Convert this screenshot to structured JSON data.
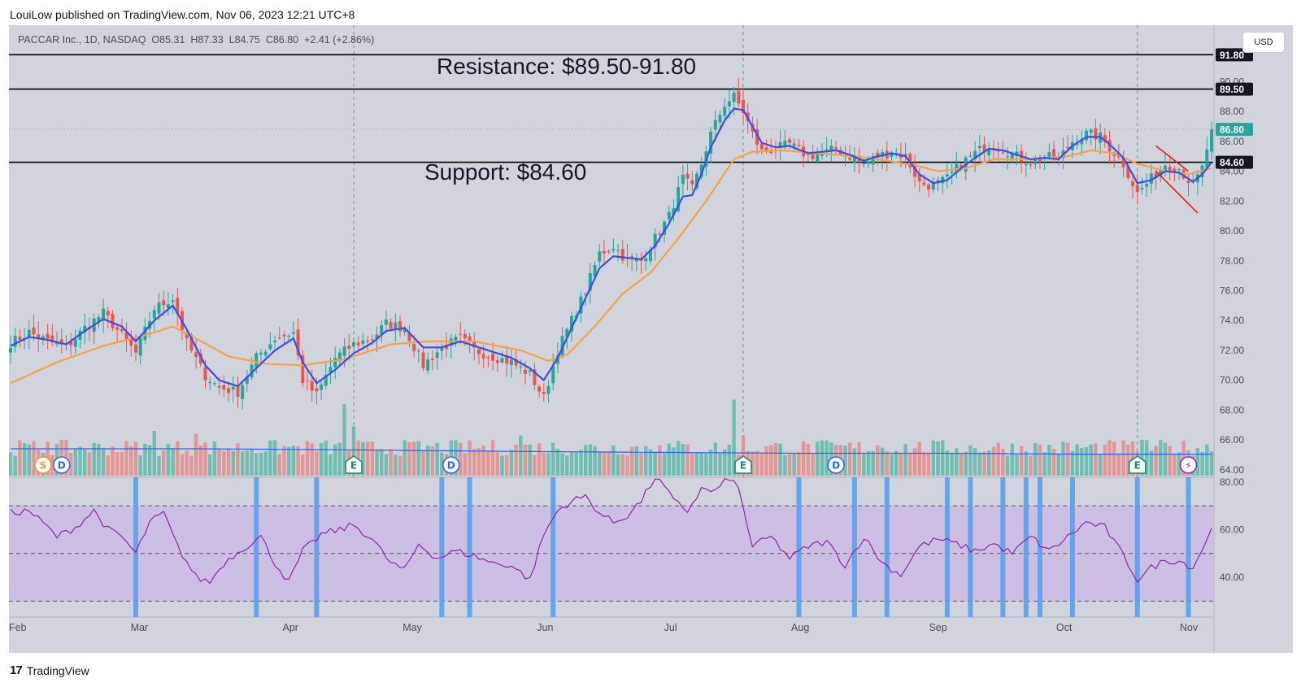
{
  "header": {
    "published_by": "LouiLow published on TradingView.com, Nov 06, 2023 12:21 UTC+8"
  },
  "legend": {
    "symbol": "PACCAR Inc., 1D, NASDAQ",
    "open": "O85.31",
    "high": "H87.33",
    "low": "L84.75",
    "close": "C86.80",
    "change": "+2.41 (+2.86%)"
  },
  "currency_button": "USD",
  "annotations": {
    "resistance": "Resistance: $89.50-91.80",
    "support": "Support: $84.60"
  },
  "footer": {
    "brand": "TradingView",
    "logo_glyph": "17"
  },
  "colors": {
    "background": "#d1d4dc",
    "up": "#26a69a",
    "down": "#ef5350",
    "ema_fast": "#3d4fe0",
    "ema_slow": "#f5a14a",
    "rsi": "#8e24aa",
    "rsi_band": "#c9b8e6",
    "signal_bar": "#5c9ef0",
    "vol_ma": "#2962ff"
  },
  "chart_data": {
    "type": "candlestick",
    "price_axis": {
      "ticks": [
        "64.00",
        "66.00",
        "68.00",
        "70.00",
        "72.00",
        "74.00",
        "76.00",
        "78.00",
        "80.00",
        "82.00",
        "84.00",
        "86.00",
        "88.00",
        "90.00"
      ],
      "ylim": [
        63.5,
        92.8
      ]
    },
    "price_labels": [
      {
        "value": 91.8,
        "text": "91.80",
        "style": "dark"
      },
      {
        "value": 89.5,
        "text": "89.50",
        "style": "dark"
      },
      {
        "value": 86.8,
        "text": "86.80",
        "style": "green"
      },
      {
        "value": 84.6,
        "text": "84.60",
        "style": "dark"
      }
    ],
    "horizontal_lines": [
      91.8,
      89.5,
      84.6
    ],
    "last_price": 86.8,
    "x_axis_labels": [
      "Feb",
      "Mar",
      "Apr",
      "May",
      "Jun",
      "Jul",
      "Aug",
      "Sep",
      "Oct",
      "Nov"
    ],
    "close_anchors": [
      [
        0,
        72.5
      ],
      [
        4,
        73.2
      ],
      [
        8,
        72.6
      ],
      [
        12,
        72.2
      ],
      [
        16,
        73.5
      ],
      [
        20,
        74.5
      ],
      [
        24,
        73.0
      ],
      [
        27,
        71.8
      ],
      [
        31,
        74.8
      ],
      [
        35,
        75.5
      ],
      [
        38,
        72.5
      ],
      [
        42,
        70.3
      ],
      [
        45,
        69.5
      ],
      [
        49,
        69.2
      ],
      [
        53,
        71.5
      ],
      [
        57,
        72.8
      ],
      [
        61,
        73.2
      ],
      [
        63,
        70.0
      ],
      [
        66,
        69.0
      ],
      [
        70,
        71.5
      ],
      [
        74,
        72.4
      ],
      [
        78,
        72.8
      ],
      [
        81,
        73.8
      ],
      [
        85,
        73.5
      ],
      [
        89,
        71.0
      ],
      [
        93,
        72.2
      ],
      [
        97,
        72.8
      ],
      [
        100,
        72.0
      ],
      [
        104,
        71.6
      ],
      [
        108,
        71.2
      ],
      [
        112,
        70.4
      ],
      [
        115,
        68.8
      ],
      [
        118,
        72.0
      ],
      [
        121,
        74.0
      ],
      [
        124,
        76.0
      ],
      [
        127,
        78.5
      ],
      [
        130,
        79.0
      ],
      [
        133,
        78.0
      ],
      [
        136,
        78.0
      ],
      [
        139,
        79.5
      ],
      [
        142,
        81.0
      ],
      [
        145,
        83.5
      ],
      [
        147,
        82.8
      ],
      [
        149,
        84.5
      ],
      [
        151,
        86.5
      ],
      [
        154,
        88.5
      ],
      [
        156,
        89.0
      ],
      [
        158,
        88.0
      ],
      [
        160,
        86.5
      ],
      [
        162,
        85.3
      ],
      [
        165,
        85.5
      ],
      [
        168,
        85.8
      ],
      [
        172,
        85.0
      ],
      [
        175,
        85.2
      ],
      [
        178,
        85.5
      ],
      [
        181,
        85.0
      ],
      [
        184,
        84.5
      ],
      [
        187,
        85.0
      ],
      [
        190,
        85.3
      ],
      [
        193,
        85.0
      ],
      [
        196,
        83.2
      ],
      [
        199,
        83.0
      ],
      [
        202,
        83.5
      ],
      [
        205,
        84.5
      ],
      [
        208,
        85.2
      ],
      [
        211,
        85.8
      ],
      [
        214,
        85.5
      ],
      [
        217,
        85.0
      ],
      [
        220,
        84.6
      ],
      [
        223,
        85.0
      ],
      [
        226,
        84.8
      ],
      [
        229,
        86.0
      ],
      [
        232,
        86.5
      ],
      [
        235,
        86.3
      ],
      [
        237,
        85.6
      ],
      [
        240,
        84.5
      ],
      [
        243,
        82.5
      ],
      [
        246,
        83.5
      ],
      [
        249,
        84.5
      ],
      [
        252,
        84.2
      ],
      [
        255,
        83.0
      ],
      [
        257,
        84.2
      ],
      [
        259,
        86.8
      ]
    ],
    "ema_fast_anchors": [
      [
        0,
        72.3
      ],
      [
        4,
        72.9
      ],
      [
        8,
        72.7
      ],
      [
        12,
        72.4
      ],
      [
        16,
        73.3
      ],
      [
        20,
        74.1
      ],
      [
        24,
        73.6
      ],
      [
        27,
        72.6
      ],
      [
        31,
        74.0
      ],
      [
        35,
        75.0
      ],
      [
        38,
        73.4
      ],
      [
        42,
        71.0
      ],
      [
        45,
        70.0
      ],
      [
        49,
        69.6
      ],
      [
        53,
        70.8
      ],
      [
        57,
        72.0
      ],
      [
        61,
        72.8
      ],
      [
        63,
        71.2
      ],
      [
        66,
        69.8
      ],
      [
        70,
        70.7
      ],
      [
        74,
        71.8
      ],
      [
        78,
        72.5
      ],
      [
        81,
        73.3
      ],
      [
        85,
        73.5
      ],
      [
        89,
        72.2
      ],
      [
        93,
        72.2
      ],
      [
        97,
        72.6
      ],
      [
        100,
        72.3
      ],
      [
        104,
        71.9
      ],
      [
        108,
        71.5
      ],
      [
        112,
        70.8
      ],
      [
        115,
        70.0
      ],
      [
        118,
        71.5
      ],
      [
        121,
        73.5
      ],
      [
        124,
        75.5
      ],
      [
        127,
        77.5
      ],
      [
        130,
        78.3
      ],
      [
        133,
        78.2
      ],
      [
        136,
        78.1
      ],
      [
        139,
        79.0
      ],
      [
        142,
        80.5
      ],
      [
        145,
        82.3
      ],
      [
        147,
        82.4
      ],
      [
        149,
        83.8
      ],
      [
        151,
        85.6
      ],
      [
        154,
        87.4
      ],
      [
        156,
        88.2
      ],
      [
        158,
        88.1
      ],
      [
        160,
        87.0
      ],
      [
        162,
        85.9
      ],
      [
        165,
        85.6
      ],
      [
        168,
        85.7
      ],
      [
        172,
        85.2
      ],
      [
        175,
        85.3
      ],
      [
        178,
        85.4
      ],
      [
        181,
        85.1
      ],
      [
        184,
        84.7
      ],
      [
        187,
        85.0
      ],
      [
        190,
        85.2
      ],
      [
        193,
        85.0
      ],
      [
        196,
        83.8
      ],
      [
        199,
        83.2
      ],
      [
        202,
        83.4
      ],
      [
        205,
        84.2
      ],
      [
        208,
        84.9
      ],
      [
        211,
        85.5
      ],
      [
        214,
        85.4
      ],
      [
        217,
        85.1
      ],
      [
        220,
        84.8
      ],
      [
        223,
        84.9
      ],
      [
        226,
        84.8
      ],
      [
        229,
        85.7
      ],
      [
        232,
        86.3
      ],
      [
        235,
        86.3
      ],
      [
        237,
        85.8
      ],
      [
        240,
        84.9
      ],
      [
        243,
        83.2
      ],
      [
        246,
        83.4
      ],
      [
        249,
        84.0
      ],
      [
        252,
        83.9
      ],
      [
        255,
        83.3
      ],
      [
        257,
        83.8
      ],
      [
        259,
        84.6
      ]
    ],
    "ema_slow_anchors": [
      [
        0,
        69.8
      ],
      [
        10,
        71.2
      ],
      [
        20,
        72.3
      ],
      [
        30,
        73.1
      ],
      [
        35,
        73.6
      ],
      [
        40,
        72.8
      ],
      [
        47,
        71.6
      ],
      [
        55,
        71.1
      ],
      [
        63,
        71.0
      ],
      [
        72,
        71.4
      ],
      [
        82,
        72.4
      ],
      [
        90,
        72.6
      ],
      [
        100,
        72.6
      ],
      [
        110,
        72.0
      ],
      [
        116,
        71.3
      ],
      [
        120,
        71.7
      ],
      [
        126,
        73.6
      ],
      [
        132,
        75.8
      ],
      [
        138,
        77.2
      ],
      [
        144,
        79.5
      ],
      [
        150,
        82.0
      ],
      [
        156,
        84.8
      ],
      [
        160,
        85.3
      ],
      [
        166,
        85.4
      ],
      [
        175,
        85.2
      ],
      [
        185,
        84.9
      ],
      [
        195,
        84.4
      ],
      [
        200,
        84.0
      ],
      [
        206,
        84.2
      ],
      [
        212,
        84.8
      ],
      [
        220,
        84.8
      ],
      [
        228,
        85.0
      ],
      [
        233,
        85.4
      ],
      [
        238,
        85.2
      ],
      [
        243,
        84.5
      ],
      [
        248,
        84.1
      ],
      [
        254,
        83.8
      ],
      [
        259,
        84.2
      ]
    ],
    "resistance_lines": [
      {
        "from": [
          247,
          85.7
        ],
        "to": [
          254,
          84.0
        ]
      },
      {
        "from": [
          247,
          84.0
        ],
        "to": [
          256,
          81.2
        ]
      }
    ],
    "volume": {
      "ma_anchors": [
        [
          0,
          0.3
        ],
        [
          40,
          0.3
        ],
        [
          70,
          0.29
        ],
        [
          90,
          0.28
        ],
        [
          110,
          0.27
        ],
        [
          140,
          0.26
        ],
        [
          170,
          0.25
        ],
        [
          200,
          0.25
        ],
        [
          230,
          0.24
        ],
        [
          259,
          0.24
        ]
      ],
      "spikes": [
        [
          8,
          0.38
        ],
        [
          31,
          0.5
        ],
        [
          40,
          0.47
        ],
        [
          72,
          0.8
        ],
        [
          74,
          0.55
        ],
        [
          110,
          0.45
        ],
        [
          140,
          0.34
        ],
        [
          156,
          0.85
        ],
        [
          158,
          0.45
        ],
        [
          187,
          0.34
        ],
        [
          238,
          0.38
        ],
        [
          244,
          0.4
        ]
      ]
    },
    "event_markers": [
      {
        "label": "S",
        "bar": 7,
        "kind": "split"
      },
      {
        "label": "D",
        "bar": 11,
        "kind": "dividend"
      },
      {
        "label": "E",
        "bar": 74,
        "kind": "earnings"
      },
      {
        "label": "D",
        "bar": 95,
        "kind": "dividend"
      },
      {
        "label": "E",
        "bar": 158,
        "kind": "earnings"
      },
      {
        "label": "D",
        "bar": 178,
        "kind": "dividend"
      },
      {
        "label": "E",
        "bar": 243,
        "kind": "earnings"
      },
      {
        "label": "⚡",
        "bar": 254,
        "kind": "event"
      }
    ],
    "earnings_dashed_bars": [
      74,
      158,
      243
    ],
    "rsi": {
      "axis_ticks": [
        "80.00",
        "60.00",
        "40.00"
      ],
      "ylim": [
        24,
        82
      ],
      "levels": [
        70,
        50,
        30
      ],
      "anchors": [
        [
          0,
          67
        ],
        [
          4,
          68
        ],
        [
          8,
          61
        ],
        [
          10,
          57
        ],
        [
          14,
          61
        ],
        [
          18,
          68
        ],
        [
          21,
          60
        ],
        [
          24,
          57
        ],
        [
          27,
          50
        ],
        [
          30,
          63
        ],
        [
          33,
          67
        ],
        [
          36,
          53
        ],
        [
          40,
          40
        ],
        [
          43,
          38
        ],
        [
          46,
          46
        ],
        [
          50,
          52
        ],
        [
          54,
          57
        ],
        [
          57,
          46
        ],
        [
          60,
          38
        ],
        [
          63,
          51
        ],
        [
          67,
          58
        ],
        [
          71,
          60
        ],
        [
          74,
          62
        ],
        [
          78,
          56
        ],
        [
          82,
          46
        ],
        [
          85,
          43
        ],
        [
          88,
          54
        ],
        [
          92,
          48
        ],
        [
          96,
          51
        ],
        [
          100,
          49
        ],
        [
          104,
          46
        ],
        [
          108,
          45
        ],
        [
          112,
          39
        ],
        [
          115,
          58
        ],
        [
          118,
          68
        ],
        [
          121,
          72
        ],
        [
          124,
          74
        ],
        [
          127,
          67
        ],
        [
          130,
          63
        ],
        [
          133,
          66
        ],
        [
          136,
          72
        ],
        [
          139,
          82
        ],
        [
          141,
          78
        ],
        [
          143,
          72
        ],
        [
          146,
          68
        ],
        [
          149,
          77
        ],
        [
          152,
          76
        ],
        [
          155,
          82
        ],
        [
          157,
          77
        ],
        [
          160,
          53
        ],
        [
          164,
          57
        ],
        [
          168,
          48
        ],
        [
          172,
          53
        ],
        [
          176,
          55
        ],
        [
          180,
          45
        ],
        [
          184,
          57
        ],
        [
          188,
          46
        ],
        [
          192,
          41
        ],
        [
          196,
          53
        ],
        [
          200,
          56
        ],
        [
          204,
          54
        ],
        [
          208,
          51
        ],
        [
          212,
          54
        ],
        [
          216,
          50
        ],
        [
          220,
          57
        ],
        [
          224,
          51
        ],
        [
          228,
          57
        ],
        [
          232,
          63
        ],
        [
          236,
          61
        ],
        [
          240,
          49
        ],
        [
          243,
          39
        ],
        [
          246,
          44
        ],
        [
          249,
          47
        ],
        [
          252,
          47
        ],
        [
          255,
          44
        ],
        [
          259,
          60
        ]
      ],
      "signal_bars": [
        27,
        53,
        66,
        93,
        99,
        117,
        170,
        182,
        189,
        202,
        207,
        214,
        219,
        222,
        229,
        243,
        254
      ]
    }
  }
}
